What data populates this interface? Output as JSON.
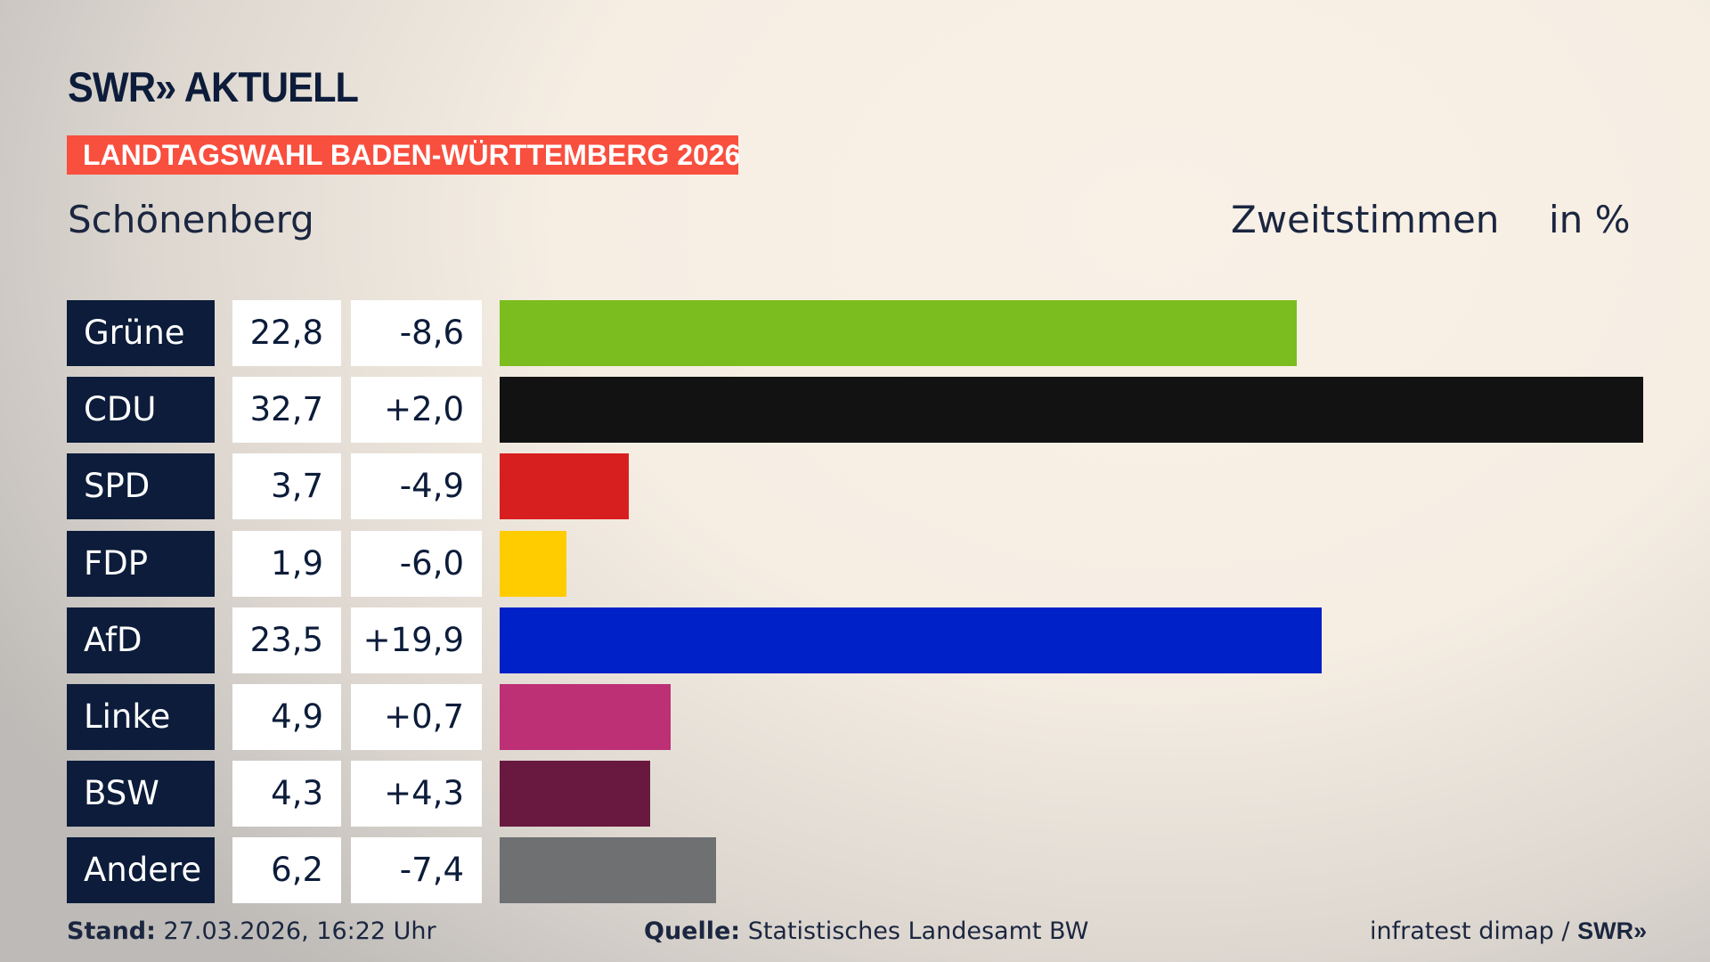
{
  "logo": "SWR» AKTUELL",
  "banner": "LANDTAGSWAHL BADEN-WÜRTTEMBERG 2026",
  "place": "Schönenberg",
  "header": {
    "type": "Zweitstimmen",
    "unit": "in %"
  },
  "chart_data": {
    "type": "bar",
    "orientation": "horizontal",
    "categories": [
      "Grüne",
      "CDU",
      "SPD",
      "FDP",
      "AfD",
      "Linke",
      "BSW",
      "Andere"
    ],
    "values": [
      22.8,
      32.7,
      3.7,
      1.9,
      23.5,
      4.9,
      4.3,
      6.2
    ],
    "value_labels": [
      "22,8",
      "32,7",
      "3,7",
      "1,9",
      "23,5",
      "4,9",
      "4,3",
      "6,2"
    ],
    "change_labels": [
      "-8,6",
      "+2,0",
      "-4,9",
      "-6,0",
      "+19,9",
      "+0,7",
      "+4,3",
      "-7,4"
    ],
    "changes": [
      -8.6,
      2.0,
      -4.9,
      -6.0,
      19.9,
      0.7,
      4.3,
      -7.4
    ],
    "colors": [
      "#7bbd1e",
      "#121212",
      "#d81f1f",
      "#ffcc00",
      "#0021c8",
      "#bd3075",
      "#69193f",
      "#6f7072"
    ]
  },
  "footer": {
    "stand_label": "Stand:",
    "stand": "27.03.2026, 16:22 Uhr",
    "source_label": "Quelle:",
    "source": "Statistisches Landesamt BW",
    "credit": "infratest dimap / ",
    "credit_logo": "SWR»"
  }
}
